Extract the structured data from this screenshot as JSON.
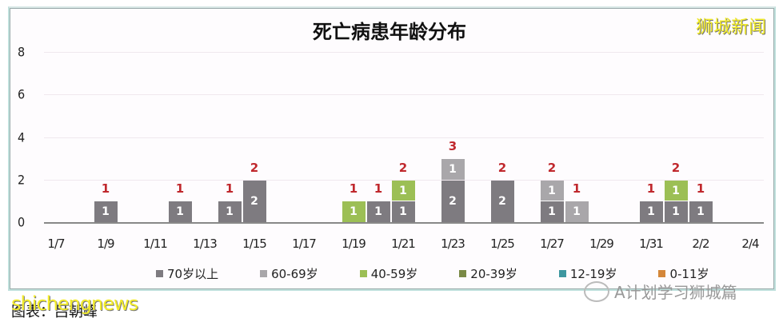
{
  "chart_data": {
    "type": "bar",
    "stacked": true,
    "title": "死亡病患年龄分布",
    "xlabel": "",
    "ylabel": "",
    "ylim": [
      0,
      8
    ],
    "yticks": [
      0,
      2,
      4,
      6,
      8
    ],
    "xtick_labels": [
      "1/7",
      "1/9",
      "1/11",
      "1/13",
      "1/15",
      "1/17",
      "1/19",
      "1/21",
      "1/23",
      "1/25",
      "1/27",
      "1/29",
      "1/31",
      "2/2",
      "2/4"
    ],
    "categories": [
      "1/7",
      "1/8",
      "1/9",
      "1/10",
      "1/11",
      "1/12",
      "1/13",
      "1/14",
      "1/15",
      "1/16",
      "1/17",
      "1/18",
      "1/19",
      "1/20",
      "1/21",
      "1/22",
      "1/23",
      "1/24",
      "1/25",
      "1/26",
      "1/27",
      "1/28",
      "1/29",
      "1/30",
      "1/31",
      "2/1",
      "2/2",
      "2/3",
      "2/4"
    ],
    "series": [
      {
        "name": "70岁以上",
        "color": "#7e7b80",
        "values": [
          0,
          0,
          1,
          0,
          0,
          1,
          0,
          1,
          2,
          0,
          0,
          0,
          0,
          1,
          1,
          0,
          2,
          0,
          2,
          0,
          1,
          0,
          0,
          0,
          1,
          1,
          1,
          0,
          0
        ]
      },
      {
        "name": "60-69岁",
        "color": "#a9a7aa",
        "values": [
          0,
          0,
          0,
          0,
          0,
          0,
          0,
          0,
          0,
          0,
          0,
          0,
          0,
          0,
          0,
          0,
          1,
          0,
          0,
          0,
          1,
          1,
          0,
          0,
          0,
          0,
          0,
          0,
          0
        ]
      },
      {
        "name": "40-59岁",
        "color": "#9cbf55",
        "values": [
          0,
          0,
          0,
          0,
          0,
          0,
          0,
          0,
          0,
          0,
          0,
          0,
          1,
          0,
          1,
          0,
          0,
          0,
          0,
          0,
          0,
          0,
          0,
          0,
          0,
          1,
          0,
          0,
          0
        ]
      },
      {
        "name": "20-39岁",
        "color": "#7a8a46",
        "values": [
          0,
          0,
          0,
          0,
          0,
          0,
          0,
          0,
          0,
          0,
          0,
          0,
          0,
          0,
          0,
          0,
          0,
          0,
          0,
          0,
          0,
          0,
          0,
          0,
          0,
          0,
          0,
          0,
          0
        ]
      },
      {
        "name": "12-19岁",
        "color": "#3e97a0",
        "values": [
          0,
          0,
          0,
          0,
          0,
          0,
          0,
          0,
          0,
          0,
          0,
          0,
          0,
          0,
          0,
          0,
          0,
          0,
          0,
          0,
          0,
          0,
          0,
          0,
          0,
          0,
          0,
          0,
          0
        ]
      },
      {
        "name": "0-11岁",
        "color": "#d4873a",
        "values": [
          0,
          0,
          0,
          0,
          0,
          0,
          0,
          0,
          0,
          0,
          0,
          0,
          0,
          0,
          0,
          0,
          0,
          0,
          0,
          0,
          0,
          0,
          0,
          0,
          0,
          0,
          0,
          0,
          0
        ]
      }
    ],
    "totals": [
      0,
      0,
      1,
      0,
      0,
      1,
      0,
      1,
      2,
      0,
      0,
      0,
      1,
      1,
      2,
      0,
      3,
      0,
      2,
      0,
      2,
      1,
      0,
      0,
      1,
      2,
      1,
      0,
      0
    ],
    "total_label_color": "#c0282d",
    "grid": true,
    "legend_position": "bottom"
  },
  "watermarks": {
    "top_right": "狮城新闻",
    "bottom_left": "shichengnews",
    "bottom_caption": "图表：吕朝峰",
    "wechat_account": "A计划学习狮城篇"
  }
}
